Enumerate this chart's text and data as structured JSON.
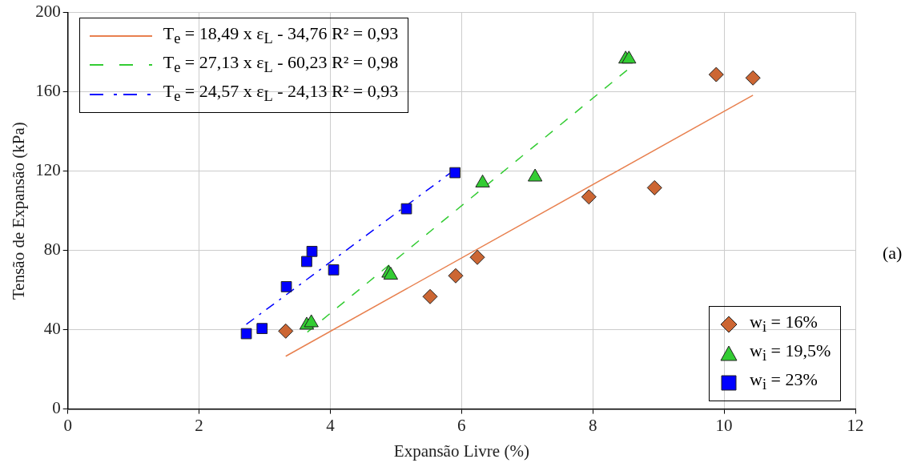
{
  "chart_data": {
    "type": "scatter",
    "xlabel": "Expansão Livre (%)",
    "ylabel": "Tensão de Expansão (kPa)",
    "xlim": [
      0,
      12
    ],
    "xticks": [
      0,
      2,
      4,
      6,
      8,
      10,
      12
    ],
    "ylim": [
      0,
      200
    ],
    "yticks": [
      0,
      40,
      80,
      120,
      160,
      200
    ],
    "grid": true,
    "legend": "top left",
    "annotations": [
      "(a)"
    ],
    "series": [
      {
        "name": "T$_{e}$ = 18,49 x ε$_{L}$ - 34,76 R² = 0,93",
        "type": "line",
        "color": "#e8804f",
        "line_style": "solid",
        "marker": "none",
        "x": [
          3.32,
          10.44
        ],
        "values": [
          26.6,
          158.3
        ]
      },
      {
        "name": "T$_{e}$ = 27,13 x ε$_{L}$ - 60,23 R² = 0,98",
        "type": "line",
        "color": "#33cc33",
        "line_style": "dashed",
        "marker": "none",
        "x": [
          3.65,
          8.55
        ],
        "values": [
          38.8,
          171.7
        ]
      },
      {
        "name": "T$_{e}$ = 24,57 x ε$_{L}$ - 24,13 R² = 0,93",
        "type": "line",
        "color": "#0000ff",
        "line_style": "dashdot",
        "marker": "none",
        "x": [
          2.72,
          5.9
        ],
        "values": [
          42.7,
          120.8
        ]
      },
      {
        "name": "w$_{i}$ = 16%",
        "type": "scatter",
        "color": "#cc6633",
        "marker": "diamond",
        "x": [
          3.32,
          5.52,
          5.91,
          6.24,
          7.94,
          8.94,
          9.88,
          10.44
        ],
        "values": [
          39.3,
          56.7,
          67.2,
          76.5,
          107,
          111.6,
          168.7,
          167
        ]
      },
      {
        "name": "w$_{i}$ = 19,5%",
        "type": "scatter",
        "color": "#33cc33",
        "marker": "triangle",
        "x": [
          3.64,
          3.71,
          4.89,
          4.92,
          6.32,
          7.12,
          8.5,
          8.55
        ],
        "values": [
          42.3,
          43.5,
          68.5,
          67.5,
          114,
          117,
          176.5,
          176.5
        ]
      },
      {
        "name": "w$_{i}$ = 23%",
        "type": "scatter",
        "color": "#0000ff",
        "marker": "square",
        "x": [
          2.72,
          2.96,
          3.33,
          3.64,
          3.72,
          4.05,
          5.16,
          5.9
        ],
        "values": [
          38,
          40.6,
          61.7,
          74.4,
          79.5,
          70.2,
          101,
          119.2
        ]
      }
    ]
  }
}
